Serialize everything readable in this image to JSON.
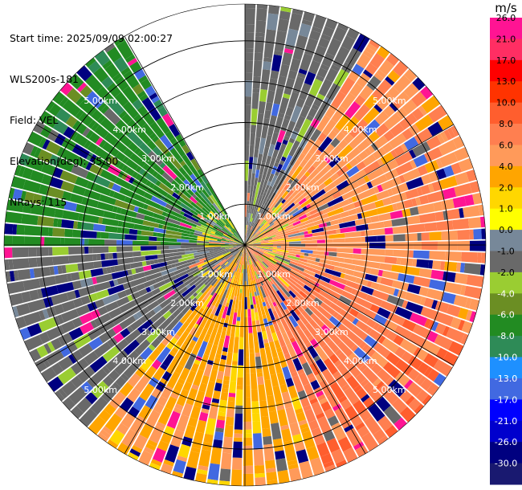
{
  "info": {
    "start_time": "Start time: 2025/09/09 02:00:27",
    "site": "WLS200s-181",
    "field": "Field: VEL",
    "elevation": "Elevation(deg): 35.00",
    "nrays": "NRays: 115"
  },
  "chart_data": {
    "type": "heatmap",
    "projection": "polar-ppi",
    "field": "VEL",
    "unit": "m/s",
    "range_rings_km": [
      1,
      2,
      3,
      4,
      5
    ],
    "range_ring_labels": [
      "1.00km",
      "2.00km",
      "3.00km",
      "4.00km",
      "5.00km"
    ],
    "max_range_km": 5.9,
    "n_rays": 115,
    "missing_sector_deg": [
      330,
      360
    ],
    "colorbar": {
      "ticks": [
        "26.0",
        "21.0",
        "17.0",
        "13.0",
        "10.0",
        "8.0",
        "6.0",
        "4.0",
        "2.0",
        "1.0",
        "0.0",
        "-1.0",
        "-2.0",
        "-4.0",
        "-6.0",
        "-8.0",
        "-10.0",
        "-13.0",
        "-17.0",
        "-21.0",
        "-26.0",
        "-30.0"
      ],
      "colors": [
        "#ff1493",
        "#ff2e63",
        "#ff0000",
        "#ff3300",
        "#ff5e2e",
        "#ff7f50",
        "#ff9a5a",
        "#ffa500",
        "#ffd700",
        "#ffff00",
        "#778899",
        "#696969",
        "#9acd32",
        "#6b8e23",
        "#228b22",
        "#2e8b57",
        "#1e90ff",
        "#4169e1",
        "#0000ff",
        "#0000cd",
        "#000080",
        "#191970"
      ]
    },
    "sectors": [
      {
        "from_deg": 0,
        "to_deg": 30,
        "dominant": "-1.0",
        "note": "mixed"
      },
      {
        "from_deg": 30,
        "to_deg": 110,
        "dominant": "6.0"
      },
      {
        "from_deg": 110,
        "to_deg": 160,
        "dominant": "8.0"
      },
      {
        "from_deg": 160,
        "to_deg": 220,
        "dominant": "4.0"
      },
      {
        "from_deg": 220,
        "to_deg": 270,
        "dominant": "-1.0"
      },
      {
        "from_deg": 270,
        "to_deg": 330,
        "dominant": "-6.0"
      }
    ]
  }
}
